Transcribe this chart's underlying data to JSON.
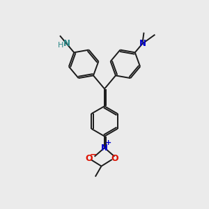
{
  "bg_color": "#ebebeb",
  "bond_color": "#1a1a1a",
  "N_blue": "#0000cc",
  "N_teal": "#2a8888",
  "O_red": "#dd1100",
  "lw": 1.4,
  "ring_r": 0.72,
  "xlim": [
    0,
    10
  ],
  "ylim": [
    0,
    10
  ]
}
